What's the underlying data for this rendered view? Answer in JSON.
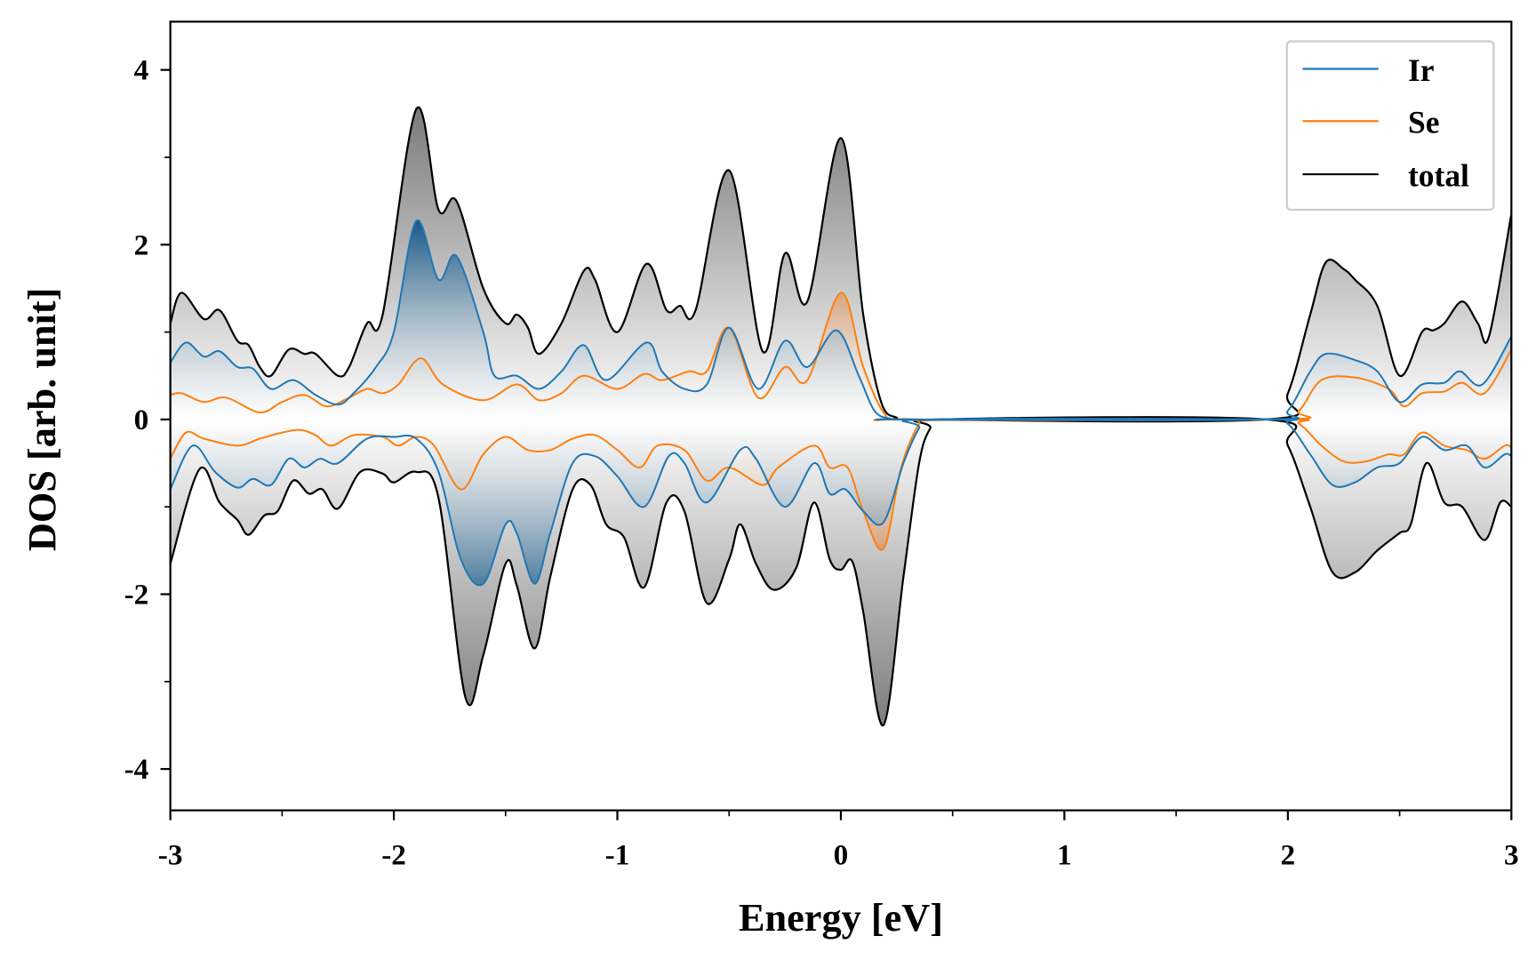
{
  "chart_data": {
    "type": "line",
    "title": "",
    "xlabel": "Energy [eV]",
    "ylabel": "DOS [arb. unit]",
    "xlim": [
      -3,
      3
    ],
    "ylim": [
      -4.5,
      4.55
    ],
    "xticks": [
      -3,
      -2,
      -1,
      0,
      1,
      2,
      3
    ],
    "xtick_labels": [
      "-3",
      "-2",
      "-1",
      "0",
      "1",
      "2",
      "3"
    ],
    "yticks": [
      -4,
      -2,
      0,
      2,
      4
    ],
    "ytick_labels": [
      "-4",
      "-2",
      "0",
      "2",
      "4"
    ],
    "grid": false,
    "legend_placement": "top-right",
    "legend": [
      "Ir",
      "Se",
      "total"
    ],
    "colors": {
      "Ir": "#1f77b4",
      "Se": "#ff7f0e",
      "total": "#000000"
    },
    "series": [
      {
        "name": "total",
        "spin": "up",
        "x": [
          -3,
          -2.95,
          -2.85,
          -2.78,
          -2.7,
          -2.65,
          -2.6,
          -2.55,
          -2.47,
          -2.4,
          -2.35,
          -2.25,
          -2.2,
          -2.12,
          -2.05,
          -1.9,
          -1.8,
          -1.72,
          -1.6,
          -1.5,
          -1.45,
          -1.4,
          -1.35,
          -1.25,
          -1.15,
          -1.1,
          -1.0,
          -0.87,
          -0.78,
          -0.72,
          -0.65,
          -0.5,
          -0.35,
          -0.25,
          -0.15,
          0.0,
          0.1,
          0.18,
          0.25,
          0.3,
          1.9,
          2.0,
          2.1,
          2.17,
          2.25,
          2.3,
          2.4,
          2.5,
          2.6,
          2.65,
          2.7,
          2.78,
          2.85,
          2.9,
          3.0
        ],
        "y": [
          1.1,
          1.45,
          1.15,
          1.25,
          0.9,
          0.85,
          0.6,
          0.5,
          0.8,
          0.75,
          0.75,
          0.5,
          0.6,
          1.1,
          1.2,
          3.55,
          2.4,
          2.5,
          1.5,
          1.1,
          1.2,
          1.05,
          0.75,
          1.1,
          1.7,
          1.6,
          1.0,
          1.78,
          1.25,
          1.3,
          1.25,
          2.85,
          0.78,
          1.9,
          1.35,
          3.22,
          1.2,
          0.2,
          0.02,
          0,
          0,
          0.3,
          1.2,
          1.8,
          1.72,
          1.6,
          1.3,
          0.5,
          1.0,
          1.02,
          1.1,
          1.35,
          1.1,
          0.95,
          2.35
        ]
      },
      {
        "name": "Ir",
        "spin": "up",
        "x": [
          -3,
          -2.93,
          -2.85,
          -2.78,
          -2.7,
          -2.63,
          -2.55,
          -2.45,
          -2.35,
          -2.25,
          -2.18,
          -2.08,
          -2.0,
          -1.9,
          -1.8,
          -1.72,
          -1.6,
          -1.55,
          -1.45,
          -1.35,
          -1.25,
          -1.15,
          -1.05,
          -0.87,
          -0.8,
          -0.7,
          -0.6,
          -0.5,
          -0.37,
          -0.25,
          -0.15,
          -0.02,
          0.08,
          0.15,
          0.22,
          0.3,
          1.9,
          2.0,
          2.1,
          2.17,
          2.3,
          2.4,
          2.5,
          2.6,
          2.7,
          2.77,
          2.87,
          3.0
        ],
        "y": [
          0.65,
          0.88,
          0.72,
          0.78,
          0.6,
          0.58,
          0.35,
          0.45,
          0.28,
          0.17,
          0.3,
          0.6,
          1.0,
          2.27,
          1.6,
          1.87,
          1.0,
          0.5,
          0.5,
          0.35,
          0.55,
          0.85,
          0.45,
          0.88,
          0.55,
          0.35,
          0.4,
          1.05,
          0.35,
          0.9,
          0.6,
          1.02,
          0.5,
          0.1,
          0.01,
          0,
          0,
          0.1,
          0.55,
          0.75,
          0.68,
          0.55,
          0.2,
          0.4,
          0.42,
          0.55,
          0.4,
          0.95
        ]
      },
      {
        "name": "Se",
        "spin": "up",
        "x": [
          -3,
          -2.95,
          -2.85,
          -2.75,
          -2.6,
          -2.5,
          -2.4,
          -2.3,
          -2.2,
          -2.12,
          -2.05,
          -1.98,
          -1.88,
          -1.78,
          -1.6,
          -1.45,
          -1.35,
          -1.25,
          -1.15,
          -1.0,
          -0.88,
          -0.8,
          -0.68,
          -0.6,
          -0.5,
          -0.37,
          -0.25,
          -0.15,
          0.0,
          0.1,
          0.2,
          0.3,
          1.95,
          2.05,
          2.15,
          2.3,
          2.45,
          2.52,
          2.6,
          2.7,
          2.78,
          2.88,
          3.0
        ],
        "y": [
          0.28,
          0.3,
          0.2,
          0.25,
          0.08,
          0.2,
          0.28,
          0.15,
          0.25,
          0.35,
          0.3,
          0.4,
          0.7,
          0.4,
          0.22,
          0.4,
          0.22,
          0.3,
          0.5,
          0.35,
          0.52,
          0.45,
          0.55,
          0.55,
          1.05,
          0.25,
          0.6,
          0.45,
          1.45,
          0.6,
          0.05,
          0,
          0,
          0.1,
          0.45,
          0.48,
          0.35,
          0.15,
          0.3,
          0.32,
          0.42,
          0.3,
          0.8
        ]
      },
      {
        "name": "total",
        "spin": "down",
        "x": [
          -3,
          -2.87,
          -2.78,
          -2.7,
          -2.65,
          -2.58,
          -2.52,
          -2.45,
          -2.38,
          -2.32,
          -2.25,
          -2.15,
          -2.05,
          -2.0,
          -1.9,
          -1.8,
          -1.68,
          -1.6,
          -1.5,
          -1.45,
          -1.37,
          -1.3,
          -1.2,
          -1.12,
          -1.05,
          -0.97,
          -0.88,
          -0.78,
          -0.7,
          -0.6,
          -0.5,
          -0.45,
          -0.38,
          -0.3,
          -0.2,
          -0.12,
          -0.05,
          0.0,
          0.05,
          0.1,
          0.19,
          0.28,
          0.35,
          0.4,
          0.45,
          1.9,
          2.0,
          2.1,
          2.2,
          2.3,
          2.4,
          2.5,
          2.55,
          2.62,
          2.7,
          2.78,
          2.88,
          2.95,
          3.0
        ],
        "y": [
          -1.65,
          -0.57,
          -0.95,
          -1.15,
          -1.32,
          -1.1,
          -1.05,
          -0.7,
          -0.85,
          -0.8,
          -1.02,
          -0.6,
          -0.62,
          -0.72,
          -0.6,
          -0.9,
          -3.18,
          -2.7,
          -1.65,
          -1.9,
          -2.62,
          -1.8,
          -0.8,
          -0.75,
          -1.2,
          -1.35,
          -1.92,
          -0.95,
          -1.05,
          -2.1,
          -1.6,
          -1.2,
          -1.65,
          -1.95,
          -1.7,
          -0.95,
          -1.6,
          -1.72,
          -1.62,
          -2.2,
          -3.5,
          -1.8,
          -0.5,
          -0.1,
          0,
          0,
          -0.3,
          -1.0,
          -1.75,
          -1.75,
          -1.5,
          -1.3,
          -1.2,
          -0.5,
          -0.95,
          -1.0,
          -1.38,
          -0.95,
          -1.0
        ]
      },
      {
        "name": "Ir",
        "spin": "down",
        "x": [
          -3,
          -2.9,
          -2.8,
          -2.7,
          -2.63,
          -2.55,
          -2.47,
          -2.4,
          -2.33,
          -2.25,
          -2.12,
          -2.0,
          -1.9,
          -1.8,
          -1.7,
          -1.6,
          -1.5,
          -1.45,
          -1.37,
          -1.3,
          -1.2,
          -1.1,
          -1.0,
          -0.88,
          -0.77,
          -0.7,
          -0.6,
          -0.45,
          -0.38,
          -0.25,
          -0.12,
          -0.05,
          0.02,
          0.1,
          0.19,
          0.28,
          0.35,
          0.4,
          1.9,
          2.0,
          2.1,
          2.2,
          2.3,
          2.4,
          2.5,
          2.6,
          2.7,
          2.8,
          2.88,
          2.97,
          3.0
        ],
        "y": [
          -0.8,
          -0.3,
          -0.6,
          -0.78,
          -0.68,
          -0.75,
          -0.45,
          -0.55,
          -0.45,
          -0.5,
          -0.22,
          -0.2,
          -0.22,
          -0.6,
          -1.6,
          -1.88,
          -1.2,
          -1.3,
          -1.88,
          -1.3,
          -0.5,
          -0.42,
          -0.65,
          -1.0,
          -0.42,
          -0.5,
          -0.95,
          -0.35,
          -0.45,
          -1.0,
          -0.5,
          -0.85,
          -0.8,
          -1.05,
          -1.18,
          -0.5,
          -0.1,
          0,
          0,
          -0.05,
          -0.4,
          -0.75,
          -0.72,
          -0.55,
          -0.5,
          -0.2,
          -0.35,
          -0.3,
          -0.55,
          -0.4,
          -0.42
        ]
      },
      {
        "name": "Se",
        "spin": "down",
        "x": [
          -3,
          -2.93,
          -2.85,
          -2.7,
          -2.6,
          -2.5,
          -2.42,
          -2.35,
          -2.28,
          -2.18,
          -2.05,
          -1.98,
          -1.9,
          -1.82,
          -1.7,
          -1.6,
          -1.5,
          -1.4,
          -1.3,
          -1.2,
          -1.1,
          -1.0,
          -0.9,
          -0.82,
          -0.7,
          -0.6,
          -0.5,
          -0.35,
          -0.28,
          -0.12,
          -0.05,
          0.03,
          0.1,
          0.19,
          0.27,
          0.35,
          0.4,
          1.95,
          2.05,
          2.15,
          2.25,
          2.35,
          2.45,
          2.52,
          2.6,
          2.7,
          2.8,
          2.88,
          2.97,
          3.0
        ],
        "y": [
          -0.45,
          -0.15,
          -0.22,
          -0.3,
          -0.22,
          -0.15,
          -0.12,
          -0.18,
          -0.3,
          -0.18,
          -0.2,
          -0.3,
          -0.2,
          -0.3,
          -0.8,
          -0.4,
          -0.2,
          -0.35,
          -0.35,
          -0.22,
          -0.18,
          -0.35,
          -0.55,
          -0.3,
          -0.35,
          -0.7,
          -0.55,
          -0.75,
          -0.55,
          -0.3,
          -0.55,
          -0.55,
          -1.05,
          -1.48,
          -0.55,
          -0.05,
          0,
          0,
          -0.05,
          -0.3,
          -0.48,
          -0.48,
          -0.4,
          -0.4,
          -0.15,
          -0.3,
          -0.35,
          -0.45,
          -0.3,
          -0.32
        ]
      }
    ]
  }
}
